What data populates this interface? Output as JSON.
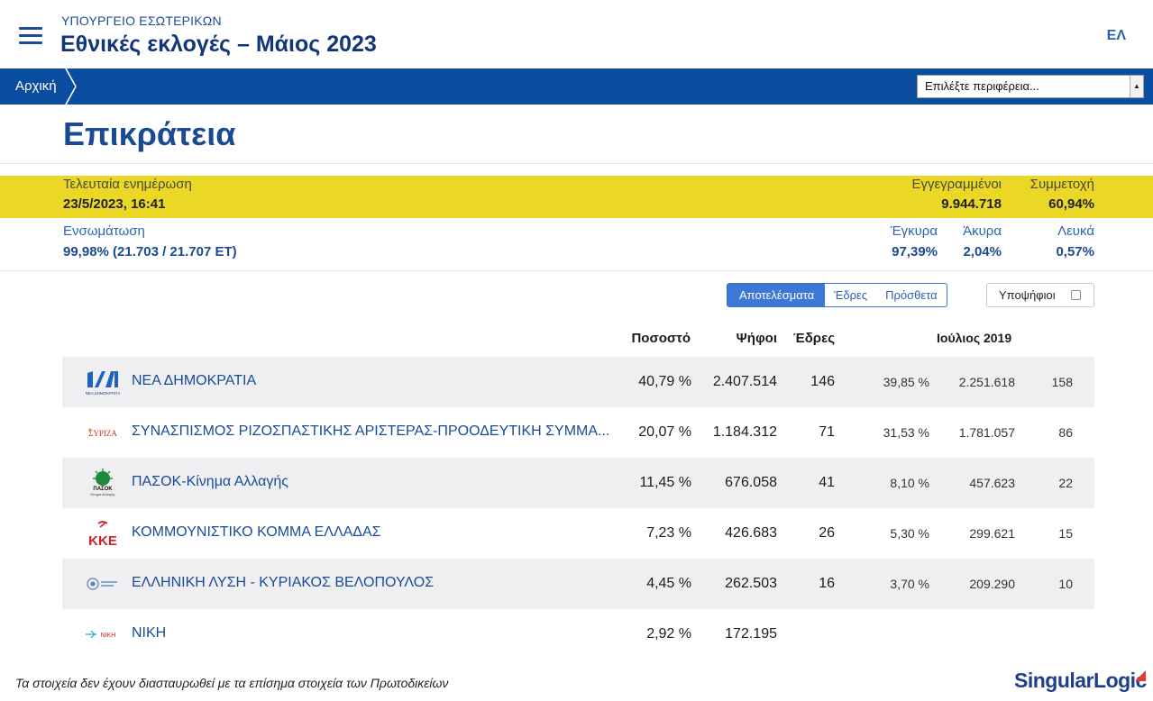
{
  "header": {
    "ministry": "ΥΠΟΥΡΓΕΙΟ ΕΣΩΤΕΡΙΚΩΝ",
    "title": "Εθνικές εκλογές – Μάιος 2023",
    "language": "ΕΛ",
    "menu_icon": "hamburger-menu-icon"
  },
  "nav": {
    "breadcrumb_home": "Αρχική",
    "region_select_value": "Επιλέξτε περιφέρεια...",
    "bar_color": "#0a4c9e"
  },
  "page": {
    "title": "Επικράτεια"
  },
  "stats": {
    "last_update_label": "Τελευταία ενημέρωση",
    "last_update_value": "23/5/2023, 16:41",
    "registered_label": "Εγγεγραμμένοι",
    "registered_value": "9.944.718",
    "turnout_label": "Συμμετοχή",
    "turnout_value": "60,94%",
    "integration_label": "Ενσωμάτωση",
    "integration_value": "99,98% (21.703 / 21.707 ΕΤ)",
    "valid_label": "Έγκυρα",
    "valid_value": "97,39%",
    "invalid_label": "Άκυρα",
    "invalid_value": "2,04%",
    "blank_label": "Λευκά",
    "blank_value": "0,57%",
    "highlight_color": "#ebd725"
  },
  "view_toggle": {
    "results": "Αποτελέσματα",
    "seats": "Έδρες",
    "extra": "Πρόσθετα",
    "candidates": "Υποψήφιοι"
  },
  "table": {
    "headers": {
      "percent": "Ποσοστό",
      "votes": "Ψήφοι",
      "seats": "Έδρες",
      "previous": "Ιούλιος 2019"
    },
    "rows": [
      {
        "logo": "nd-logo",
        "name": "ΝΕΑ ΔΗΜΟΚΡΑΤΙΑ",
        "percent": "40,79 %",
        "votes": "2.407.514",
        "seats": "146",
        "prev_percent": "39,85 %",
        "prev_votes": "2.251.618",
        "prev_seats": "158"
      },
      {
        "logo": "syriza-logo",
        "name": "ΣΥΝΑΣΠΙΣΜΟΣ ΡΙΖΟΣΠΑΣΤΙΚΗΣ ΑΡΙΣΤΕΡΑΣ-ΠΡΟΟΔΕΥΤΙΚΗ ΣΥΜΜΑ...",
        "percent": "20,07 %",
        "votes": "1.184.312",
        "seats": "71",
        "prev_percent": "31,53 %",
        "prev_votes": "1.781.057",
        "prev_seats": "86"
      },
      {
        "logo": "pasok-logo",
        "name": "ΠΑΣΟΚ-Κίνημα Αλλαγής",
        "percent": "11,45 %",
        "votes": "676.058",
        "seats": "41",
        "prev_percent": "8,10 %",
        "prev_votes": "457.623",
        "prev_seats": "22"
      },
      {
        "logo": "kke-logo",
        "name": "ΚΟΜΜΟΥΝΙΣΤΙΚΟ ΚΟΜΜΑ ΕΛΛΑΔΑΣ",
        "percent": "7,23 %",
        "votes": "426.683",
        "seats": "26",
        "prev_percent": "5,30 %",
        "prev_votes": "299.621",
        "prev_seats": "15"
      },
      {
        "logo": "elliniki-lysi-logo",
        "name": "ΕΛΛΗΝΙΚΗ ΛΥΣΗ - ΚΥΡΙΑΚΟΣ ΒΕΛΟΠΟΥΛΟΣ",
        "percent": "4,45 %",
        "votes": "262.503",
        "seats": "16",
        "prev_percent": "3,70 %",
        "prev_votes": "209.290",
        "prev_seats": "10"
      },
      {
        "logo": "niki-logo",
        "name": "ΝΙΚΗ",
        "percent": "2,92 %",
        "votes": "172.195",
        "seats": "",
        "prev_percent": "",
        "prev_votes": "",
        "prev_seats": ""
      }
    ]
  },
  "logo_text": {
    "nd_sub": "ΝΕΑ ΔΗΜΟΚΡΑΤΙΑ",
    "syriza": "ΣΥΡΙΖΑ",
    "pasok": "ΠΑΣΟΚ",
    "pasok_sub": "Κίνημα Αλλαγής",
    "kke": "ΚΚΕ",
    "niki": "ΝΙΚΗ"
  },
  "footer": {
    "note": "Τα στοιχεία δεν έχουν διασταυρωθεί με τα επίσημα στοιχεία των Πρωτοδικείων",
    "brand_singular": "Singular",
    "brand_logic": "Logic"
  }
}
